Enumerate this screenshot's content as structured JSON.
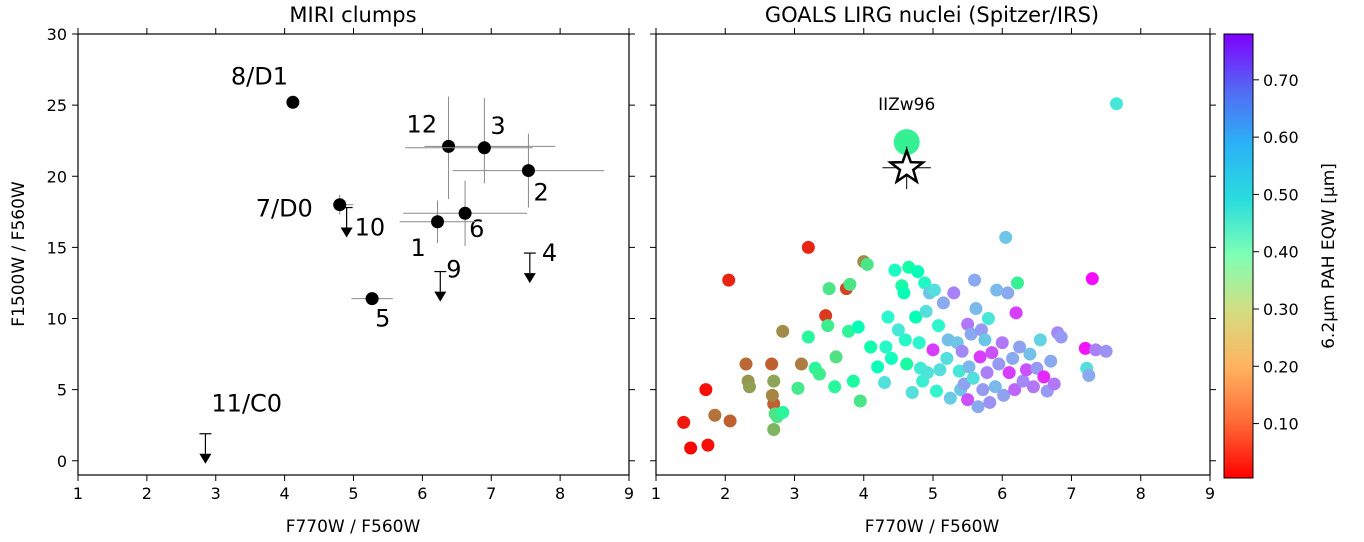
{
  "chart_data": [
    {
      "type": "scatter",
      "title": "MIRI clumps",
      "xlabel": "F770W / F560W",
      "ylabel": "F1500W / F560W",
      "xlim": [
        1,
        9
      ],
      "ylim": [
        -1,
        30
      ],
      "xticks": [
        "1",
        "2",
        "3",
        "4",
        "5",
        "6",
        "7",
        "8",
        "9"
      ],
      "yticks": [
        "0",
        "5",
        "10",
        "15",
        "20",
        "25",
        "30"
      ],
      "grid": false,
      "points": [
        {
          "label": "8/D1",
          "x": 4.12,
          "y": 25.2
        },
        {
          "label": "12",
          "x": 6.38,
          "y": 22.1,
          "xerr": [
            0.35,
            1.55
          ],
          "yerr": [
            3.7,
            3.5
          ]
        },
        {
          "label": "3",
          "x": 6.9,
          "y": 22.0,
          "xerr": [
            1.15,
            0.7
          ],
          "yerr": [
            2.5,
            3.5
          ]
        },
        {
          "label": "2",
          "x": 7.54,
          "y": 20.4,
          "xerr": [
            1.1,
            1.1
          ],
          "yerr": [
            2.6,
            2.6
          ]
        },
        {
          "label": "7/D0",
          "x": 4.8,
          "y": 18.0,
          "xerr": [
            0.0,
            0.2
          ],
          "yerr": [
            0.7,
            0.7
          ]
        },
        {
          "label": "6",
          "x": 6.62,
          "y": 17.4,
          "xerr": [
            0.9,
            0.9
          ],
          "yerr": [
            2.3,
            2.3
          ]
        },
        {
          "label": "1",
          "x": 6.22,
          "y": 16.8,
          "xerr": [
            0.55,
            0.55
          ],
          "yerr": [
            1.5,
            1.5
          ]
        },
        {
          "label": "5",
          "x": 5.27,
          "y": 11.4,
          "xerr": [
            0.3,
            0.3
          ],
          "yerr": [
            0.3,
            0.3
          ]
        }
      ],
      "upper_limits": [
        {
          "label": "10",
          "x": 4.9,
          "y": 17.8
        },
        {
          "label": "4",
          "x": 7.56,
          "y": 14.6
        },
        {
          "label": "9",
          "x": 6.26,
          "y": 13.3
        },
        {
          "label": "11/C0",
          "x": 2.85,
          "y": 1.9
        }
      ]
    },
    {
      "type": "scatter",
      "title": "GOALS LIRG nuclei (Spitzer/IRS)",
      "xlabel": "F770W / F560W",
      "ylabel": "",
      "xlim": [
        1,
        9
      ],
      "ylim": [
        -1,
        30
      ],
      "xticks": [
        "1",
        "2",
        "3",
        "4",
        "5",
        "6",
        "7",
        "8",
        "9"
      ],
      "grid": false,
      "colorbar": {
        "label": "6.2μm PAH EQW [μm]",
        "range": [
          0.005,
          0.78
        ],
        "ticks": [
          "0.10",
          "0.20",
          "0.30",
          "0.40",
          "0.50",
          "0.60",
          "0.70"
        ],
        "colormap": "rainbow"
      },
      "highlight": {
        "label": "IIZw96",
        "x": 4.62,
        "y": 22.4,
        "eqw": 0.31
      },
      "star": {
        "x": 4.62,
        "y": 20.6,
        "xerr": [
          0.35,
          0.35
        ],
        "yerr": [
          1.5,
          1.5
        ]
      },
      "points": [
        [
          1.4,
          2.7,
          0.03
        ],
        [
          1.5,
          0.9,
          0.01
        ],
        [
          1.72,
          5.0,
          0.02
        ],
        [
          1.75,
          1.1,
          0.02
        ],
        [
          1.85,
          3.2,
          0.12
        ],
        [
          2.05,
          12.7,
          0.04
        ],
        [
          2.07,
          2.8,
          0.1
        ],
        [
          2.3,
          6.8,
          0.11
        ],
        [
          2.33,
          5.6,
          0.16
        ],
        [
          2.35,
          5.2,
          0.17
        ],
        [
          2.67,
          6.8,
          0.1
        ],
        [
          2.7,
          4.0,
          0.1
        ],
        [
          2.68,
          4.6,
          0.14
        ],
        [
          2.7,
          5.6,
          0.18
        ],
        [
          2.7,
          2.2,
          0.2
        ],
        [
          2.72,
          3.3,
          0.27
        ],
        [
          2.75,
          3.1,
          0.28
        ],
        [
          2.83,
          3.4,
          0.33
        ],
        [
          2.83,
          9.1,
          0.15
        ],
        [
          3.05,
          5.1,
          0.29
        ],
        [
          3.1,
          6.8,
          0.13
        ],
        [
          3.2,
          15.0,
          0.04
        ],
        [
          3.2,
          8.7,
          0.33
        ],
        [
          3.3,
          6.5,
          0.33
        ],
        [
          3.36,
          6.1,
          0.3
        ],
        [
          3.45,
          10.2,
          0.06
        ],
        [
          3.48,
          9.5,
          0.3
        ],
        [
          3.5,
          12.1,
          0.28
        ],
        [
          3.58,
          5.2,
          0.33
        ],
        [
          3.6,
          7.3,
          0.27
        ],
        [
          3.75,
          12.1,
          0.07
        ],
        [
          3.78,
          9.1,
          0.32
        ],
        [
          3.8,
          12.4,
          0.28
        ],
        [
          3.85,
          5.6,
          0.35
        ],
        [
          3.92,
          9.4,
          0.4
        ],
        [
          3.95,
          4.2,
          0.28
        ],
        [
          4.0,
          14.0,
          0.15
        ],
        [
          4.05,
          13.8,
          0.28
        ],
        [
          4.1,
          8.0,
          0.37
        ],
        [
          4.2,
          6.6,
          0.41
        ],
        [
          4.3,
          5.5,
          0.52
        ],
        [
          4.32,
          8.0,
          0.45
        ],
        [
          4.35,
          10.1,
          0.46
        ],
        [
          4.4,
          7.2,
          0.42
        ],
        [
          4.45,
          13.4,
          0.43
        ],
        [
          4.5,
          9.2,
          0.5
        ],
        [
          4.55,
          12.3,
          0.35
        ],
        [
          4.58,
          11.8,
          0.4
        ],
        [
          4.6,
          8.5,
          0.45
        ],
        [
          4.62,
          6.8,
          0.35
        ],
        [
          4.65,
          13.6,
          0.36
        ],
        [
          4.7,
          4.8,
          0.52
        ],
        [
          4.75,
          10.1,
          0.4
        ],
        [
          4.78,
          13.3,
          0.4
        ],
        [
          4.8,
          8.3,
          0.46
        ],
        [
          4.82,
          6.5,
          0.49
        ],
        [
          4.85,
          5.6,
          0.48
        ],
        [
          4.88,
          12.5,
          0.44
        ],
        [
          4.9,
          10.5,
          0.52
        ],
        [
          4.92,
          6.2,
          0.51
        ],
        [
          4.95,
          11.8,
          0.56
        ],
        [
          5.0,
          7.8,
          0.72
        ],
        [
          5.02,
          12.0,
          0.52
        ],
        [
          5.05,
          4.9,
          0.47
        ],
        [
          5.08,
          9.5,
          0.46
        ],
        [
          5.1,
          6.4,
          0.52
        ],
        [
          5.15,
          11.1,
          0.6
        ],
        [
          5.2,
          7.2,
          0.52
        ],
        [
          5.22,
          8.5,
          0.57
        ],
        [
          5.25,
          4.4,
          0.55
        ],
        [
          5.3,
          11.8,
          0.65
        ],
        [
          5.35,
          8.3,
          0.56
        ],
        [
          5.38,
          6.3,
          0.5
        ],
        [
          5.4,
          5.0,
          0.56
        ],
        [
          5.42,
          7.7,
          0.64
        ],
        [
          5.45,
          5.4,
          0.61
        ],
        [
          5.5,
          4.3,
          0.7
        ],
        [
          5.5,
          9.6,
          0.66
        ],
        [
          5.52,
          6.6,
          0.58
        ],
        [
          5.55,
          8.9,
          0.6
        ],
        [
          5.58,
          5.8,
          0.52
        ],
        [
          5.6,
          12.7,
          0.6
        ],
        [
          5.62,
          10.7,
          0.58
        ],
        [
          5.65,
          3.8,
          0.6
        ],
        [
          5.68,
          7.3,
          0.72
        ],
        [
          5.7,
          9.2,
          0.62
        ],
        [
          5.72,
          5.0,
          0.62
        ],
        [
          5.75,
          8.5,
          0.56
        ],
        [
          5.78,
          6.2,
          0.65
        ],
        [
          5.8,
          10.0,
          0.5
        ],
        [
          5.82,
          4.1,
          0.63
        ],
        [
          5.85,
          7.6,
          0.7
        ],
        [
          5.9,
          5.2,
          0.58
        ],
        [
          5.92,
          12.0,
          0.58
        ],
        [
          5.95,
          6.8,
          0.62
        ],
        [
          6.0,
          8.3,
          0.66
        ],
        [
          6.02,
          4.6,
          0.61
        ],
        [
          6.05,
          15.7,
          0.56
        ],
        [
          6.08,
          11.8,
          0.6
        ],
        [
          6.1,
          6.2,
          0.72
        ],
        [
          6.15,
          7.2,
          0.6
        ],
        [
          6.18,
          5.0,
          0.68
        ],
        [
          6.2,
          10.4,
          0.72
        ],
        [
          6.22,
          12.5,
          0.31
        ],
        [
          6.25,
          8.0,
          0.61
        ],
        [
          6.3,
          5.6,
          0.64
        ],
        [
          6.35,
          6.4,
          0.7
        ],
        [
          6.4,
          7.5,
          0.57
        ],
        [
          6.45,
          5.2,
          0.66
        ],
        [
          6.5,
          6.5,
          0.62
        ],
        [
          6.55,
          8.5,
          0.54
        ],
        [
          6.6,
          5.9,
          0.74
        ],
        [
          6.65,
          4.9,
          0.62
        ],
        [
          6.7,
          7.0,
          0.6
        ],
        [
          6.75,
          5.4,
          0.66
        ],
        [
          6.8,
          9.0,
          0.64
        ],
        [
          6.85,
          8.7,
          0.62
        ],
        [
          7.2,
          7.9,
          0.76
        ],
        [
          7.22,
          6.5,
          0.52
        ],
        [
          7.25,
          6.0,
          0.6
        ],
        [
          7.3,
          12.8,
          0.77
        ],
        [
          7.35,
          7.8,
          0.65
        ],
        [
          7.5,
          7.7,
          0.63
        ],
        [
          7.65,
          25.1,
          0.5
        ]
      ]
    }
  ]
}
